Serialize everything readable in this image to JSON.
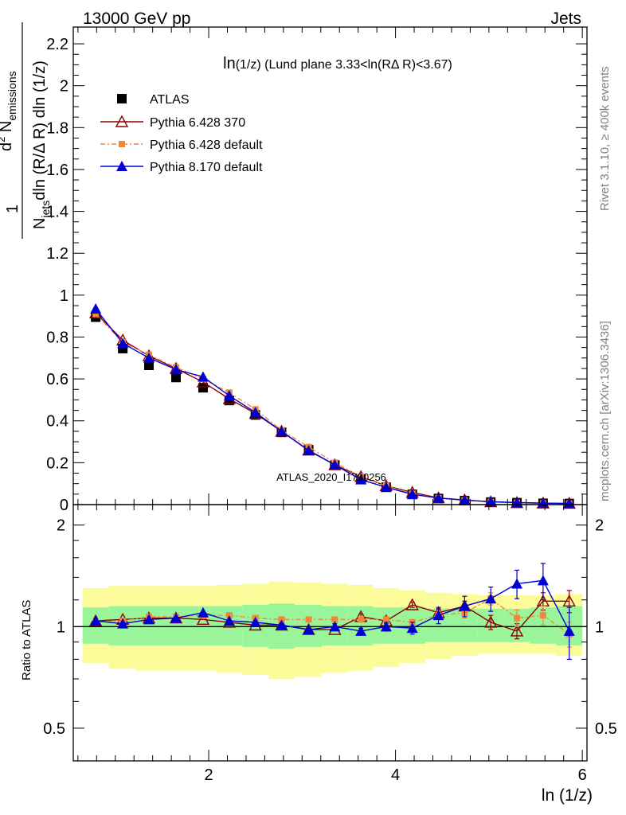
{
  "header": {
    "left": "13000 GeV pp",
    "right": "Jets"
  },
  "side": {
    "rivet": "Rivet 3.1.10, ≥ 400k events",
    "mcplots": "mcplots.cern.ch [arXiv:1306.3436]"
  },
  "watermark": "ATLAS_2020_I1790256",
  "main_title": "ln(1/z) (Lund plane 3.33<ln(RΔ R)<3.67)",
  "ylabel_main": "1/N_jets dln (R/Δ R) dln (1/z) · d² N_emissions",
  "ylabel_ratio": "Ratio to ATLAS",
  "xlabel": "ln (1/z)",
  "colors": {
    "atlas": "#000000",
    "py6_370": "#8b0000",
    "py6_default": "#f0883c",
    "py8": "#0000d0",
    "band_green": "#9af59a",
    "band_yellow": "#fbfb9a"
  },
  "chart_data": [
    {
      "type": "scatter",
      "panel": "main",
      "xlim": [
        0.55,
        6.05
      ],
      "ylim": [
        0,
        2.28
      ],
      "xticks": [
        2,
        4,
        6
      ],
      "yticks": [
        0,
        0.2,
        0.4,
        0.6,
        0.8,
        1,
        1.2,
        1.4,
        1.6,
        1.8,
        2,
        2.2
      ],
      "ytick_labels": [
        "0",
        "0.2",
        "0.4",
        "0.6",
        "0.8",
        "1",
        "1.2",
        "1.4",
        "1.6",
        "1.8",
        "2",
        "2.2"
      ],
      "x": [
        0.79,
        1.08,
        1.36,
        1.65,
        1.94,
        2.22,
        2.5,
        2.78,
        3.07,
        3.35,
        3.63,
        3.9,
        4.18,
        4.46,
        4.74,
        5.02,
        5.3,
        5.58,
        5.86
      ],
      "series": [
        {
          "name": "ATLAS",
          "key": "atlas",
          "marker": "square",
          "values": [
            0.895,
            0.745,
            0.665,
            0.607,
            0.558,
            0.497,
            0.428,
            0.345,
            0.262,
            0.189,
            0.122,
            0.083,
            0.049,
            0.029,
            0.019,
            0.012,
            0.009,
            0.006,
            0.005
          ]
        },
        {
          "name": "Pythia 6.428 370",
          "key": "py6_370",
          "marker": "triangle-open",
          "values": [
            0.915,
            0.785,
            0.71,
            0.65,
            0.585,
            0.505,
            0.435,
            0.35,
            0.26,
            0.19,
            0.133,
            0.09,
            0.058,
            0.032,
            0.022,
            0.013,
            0.009,
            0.007,
            0.006
          ]
        },
        {
          "name": "Pythia 6.428 default",
          "key": "py6_default",
          "marker": "square-small",
          "values": [
            0.91,
            0.775,
            0.715,
            0.655,
            0.6,
            0.535,
            0.455,
            0.355,
            0.275,
            0.2,
            0.133,
            0.09,
            0.052,
            0.031,
            0.021,
            0.013,
            0.009,
            0.006,
            0.005
          ]
        },
        {
          "name": "Pythia 8.170 default",
          "key": "py8",
          "marker": "triangle",
          "values": [
            0.935,
            0.77,
            0.7,
            0.645,
            0.61,
            0.52,
            0.44,
            0.35,
            0.258,
            0.19,
            0.119,
            0.083,
            0.049,
            0.031,
            0.021,
            0.014,
            0.01,
            0.007,
            0.005
          ]
        }
      ]
    },
    {
      "type": "scatter",
      "panel": "ratio",
      "xlim": [
        0.55,
        6.05
      ],
      "ylim": [
        0.4,
        2.3
      ],
      "log_y": true,
      "xticks": [
        2,
        4,
        6
      ],
      "xtick_labels": [
        "2",
        "4",
        "6"
      ],
      "yticks": [
        0.5,
        1,
        2
      ],
      "ytick_labels": [
        "0.5",
        "1",
        "2"
      ],
      "x": [
        0.79,
        1.08,
        1.36,
        1.65,
        1.94,
        2.22,
        2.5,
        2.78,
        3.07,
        3.35,
        3.63,
        3.9,
        4.18,
        4.46,
        4.74,
        5.02,
        5.3,
        5.58,
        5.86
      ],
      "bins": [
        0.65,
        0.93,
        1.22,
        1.5,
        1.79,
        2.08,
        2.36,
        2.64,
        2.92,
        3.21,
        3.49,
        3.76,
        4.04,
        4.32,
        4.6,
        4.88,
        5.16,
        5.44,
        5.72,
        6.0
      ],
      "band_green": [
        [
          0.89,
          1.14
        ],
        [
          0.88,
          1.15
        ],
        [
          0.88,
          1.15
        ],
        [
          0.88,
          1.15
        ],
        [
          0.88,
          1.15
        ],
        [
          0.88,
          1.15
        ],
        [
          0.87,
          1.16
        ],
        [
          0.86,
          1.17
        ],
        [
          0.87,
          1.16
        ],
        [
          0.88,
          1.15
        ],
        [
          0.88,
          1.15
        ],
        [
          0.89,
          1.14
        ],
        [
          0.89,
          1.14
        ],
        [
          0.9,
          1.13
        ],
        [
          0.9,
          1.13
        ],
        [
          0.9,
          1.13
        ],
        [
          0.9,
          1.13
        ],
        [
          0.89,
          1.14
        ],
        [
          0.88,
          1.15
        ]
      ],
      "band_yellow": [
        [
          0.78,
          1.3
        ],
        [
          0.75,
          1.32
        ],
        [
          0.74,
          1.32
        ],
        [
          0.74,
          1.32
        ],
        [
          0.74,
          1.32
        ],
        [
          0.73,
          1.33
        ],
        [
          0.72,
          1.34
        ],
        [
          0.7,
          1.36
        ],
        [
          0.71,
          1.35
        ],
        [
          0.73,
          1.34
        ],
        [
          0.74,
          1.33
        ],
        [
          0.76,
          1.3
        ],
        [
          0.78,
          1.28
        ],
        [
          0.8,
          1.26
        ],
        [
          0.82,
          1.25
        ],
        [
          0.83,
          1.24
        ],
        [
          0.83,
          1.24
        ],
        [
          0.83,
          1.24
        ],
        [
          0.82,
          1.25
        ]
      ],
      "series": [
        {
          "name": "Pythia 6.428 370",
          "key": "py6_370",
          "marker": "triangle-open",
          "values": [
            1.04,
            1.05,
            1.06,
            1.06,
            1.05,
            1.03,
            1.01,
            1.01,
            0.98,
            0.98,
            1.07,
            1.04,
            1.16,
            1.1,
            1.15,
            1.03,
            0.97,
            1.19,
            1.19
          ],
          "err": [
            0.01,
            0.01,
            0.01,
            0.01,
            0.01,
            0.01,
            0.01,
            0.01,
            0.01,
            0.01,
            0.02,
            0.02,
            0.02,
            0.03,
            0.04,
            0.05,
            0.05,
            0.07,
            0.09
          ]
        },
        {
          "name": "Pythia 6.428 default",
          "key": "py6_default",
          "marker": "square-small",
          "values": [
            1.03,
            1.04,
            1.07,
            1.07,
            1.08,
            1.08,
            1.06,
            1.05,
            1.05,
            1.05,
            1.05,
            1.05,
            1.03,
            1.08,
            1.1,
            1.21,
            1.06,
            1.08,
            0.95
          ],
          "err": [
            0.01,
            0.01,
            0.01,
            0.01,
            0.01,
            0.01,
            0.01,
            0.01,
            0.01,
            0.01,
            0.02,
            0.02,
            0.02,
            0.03,
            0.04,
            0.05,
            0.06,
            0.07,
            0.08
          ]
        },
        {
          "name": "Pythia 8.170 default",
          "key": "py8",
          "marker": "triangle",
          "values": [
            1.04,
            1.02,
            1.05,
            1.06,
            1.1,
            1.04,
            1.03,
            1.01,
            0.98,
            1.0,
            0.97,
            1.0,
            0.99,
            1.08,
            1.15,
            1.21,
            1.34,
            1.37,
            0.97
          ],
          "err": [
            0.01,
            0.01,
            0.01,
            0.01,
            0.01,
            0.01,
            0.01,
            0.01,
            0.01,
            0.02,
            0.02,
            0.03,
            0.04,
            0.06,
            0.08,
            0.1,
            0.13,
            0.17,
            0.17
          ]
        }
      ]
    }
  ]
}
